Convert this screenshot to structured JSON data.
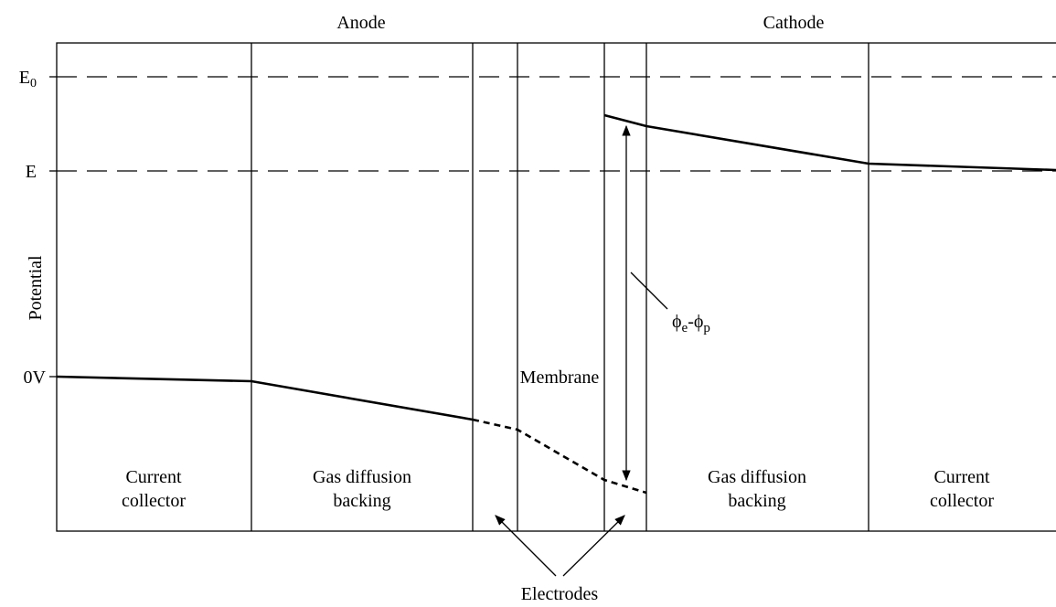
{
  "header": {
    "anode": "Anode",
    "cathode": "Cathode"
  },
  "axis": {
    "label": "Potential",
    "levels": [
      {
        "text": "E",
        "sub": "0"
      },
      {
        "text": "E"
      },
      {
        "text": "0V"
      }
    ]
  },
  "regions": [
    {
      "lines": [
        "Current",
        "collector"
      ]
    },
    {
      "lines": [
        "Gas diffusion",
        "backing"
      ]
    },
    {
      "lines": [
        "Gas diffusion",
        "backing"
      ]
    },
    {
      "lines": [
        "Current",
        "collector"
      ]
    }
  ],
  "membrane": "Membrane",
  "potential_difference": {
    "parts": [
      "ϕ",
      "e",
      "-ϕ",
      "p"
    ]
  },
  "electrodes": "Electrodes"
}
